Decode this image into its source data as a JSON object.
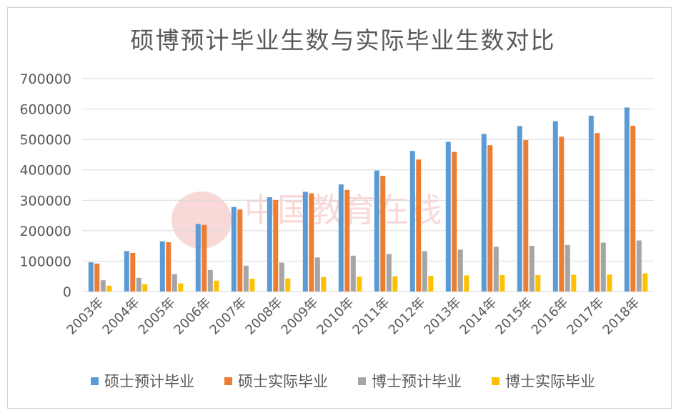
{
  "chart_data": {
    "type": "bar",
    "title": "硕博预计毕业生数与实际毕业生数对比",
    "categories": [
      "2003年",
      "2004年",
      "2005年",
      "2006年",
      "2007年",
      "2008年",
      "2009年",
      "2010年",
      "2011年",
      "2012年",
      "2013年",
      "2014年",
      "2015年",
      "2016年",
      "2017年",
      "2018年"
    ],
    "series": [
      {
        "name": "硕士预计毕业",
        "color": "#5b9bd5",
        "values": [
          96000,
          133000,
          165000,
          222000,
          278000,
          310000,
          328000,
          352000,
          398000,
          462000,
          492000,
          518000,
          544000,
          560000,
          578000,
          605000
        ]
      },
      {
        "name": "硕士实际毕业",
        "color": "#ed7d31",
        "values": [
          92000,
          127000,
          162000,
          219000,
          270000,
          301000,
          323000,
          334000,
          380000,
          434000,
          459000,
          481000,
          498000,
          509000,
          521000,
          545000
        ]
      },
      {
        "name": "博士预计毕业",
        "color": "#a5a5a5",
        "values": [
          37000,
          45000,
          57000,
          71000,
          85000,
          95000,
          112000,
          118000,
          123000,
          133000,
          138000,
          147000,
          150000,
          153000,
          161000,
          168000
        ]
      },
      {
        "name": "博士实际毕业",
        "color": "#ffc000",
        "values": [
          19000,
          24000,
          27000,
          36000,
          42000,
          43000,
          48000,
          49000,
          50000,
          52000,
          53000,
          54000,
          54000,
          55000,
          56000,
          60000
        ]
      }
    ],
    "yticks": [
      "0",
      "100000",
      "200000",
      "300000",
      "400000",
      "500000",
      "600000",
      "700000"
    ],
    "ylim": [
      0,
      700000
    ],
    "grid": true,
    "legend_position": "bottom"
  },
  "watermark_text": "中国教育在线"
}
